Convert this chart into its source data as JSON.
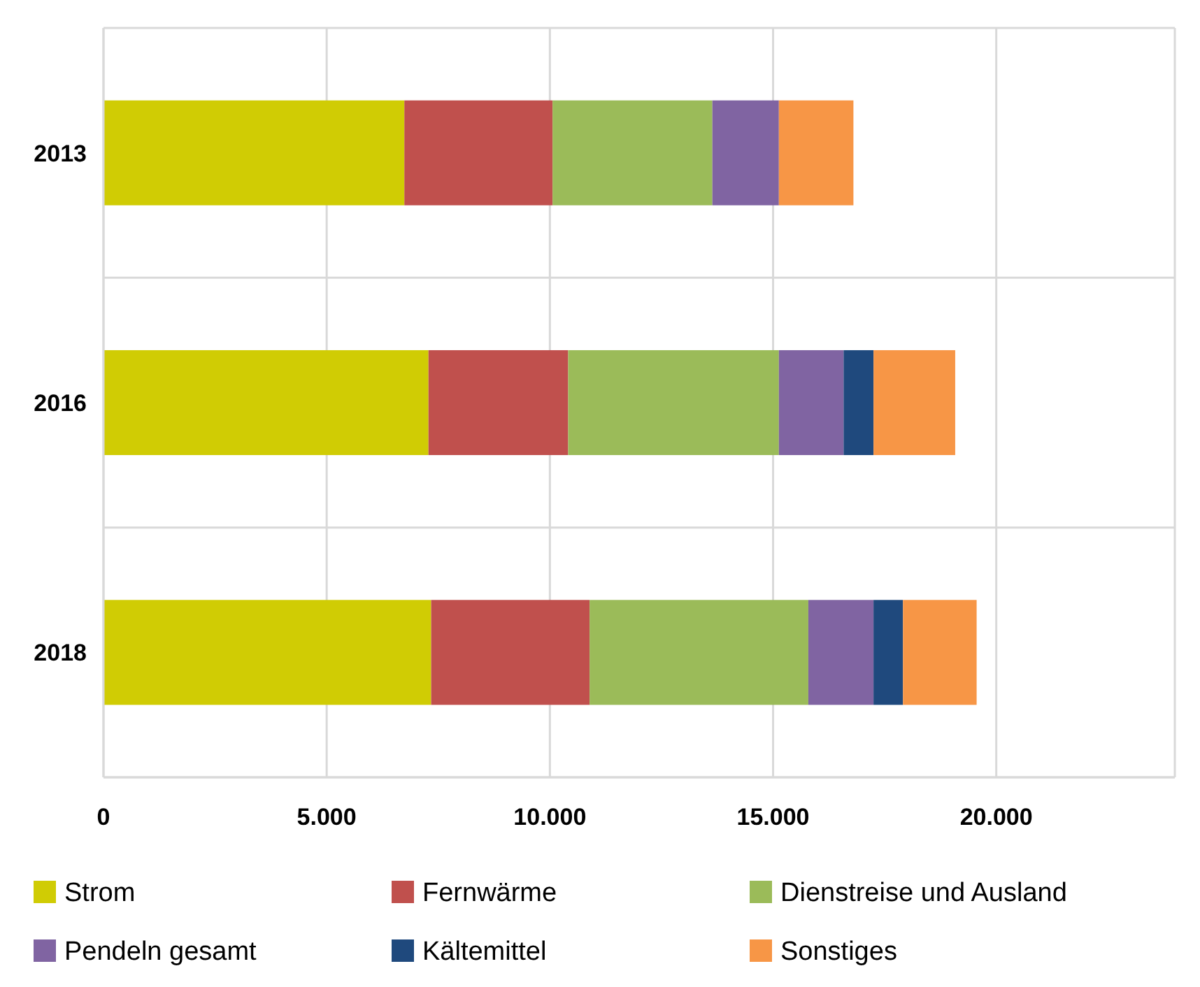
{
  "chart_data": {
    "type": "bar",
    "orientation": "horizontal",
    "stacked": true,
    "categories": [
      "2013",
      "2016",
      "2018"
    ],
    "series": [
      {
        "name": "Strom",
        "color": "#d0cc04",
        "values": [
          6740,
          7280,
          7340
        ]
      },
      {
        "name": "Fernwärme",
        "color": "#c0504d",
        "values": [
          3320,
          3130,
          3550
        ]
      },
      {
        "name": "Dienstreise und Ausland",
        "color": "#9bbb59",
        "values": [
          3580,
          4720,
          4900
        ]
      },
      {
        "name": "Pendeln gesamt",
        "color": "#8064a2",
        "values": [
          1490,
          1450,
          1460
        ]
      },
      {
        "name": "Kältemittel",
        "color": "#1f497d",
        "values": [
          null,
          670,
          660
        ]
      },
      {
        "name": "Sonstiges",
        "color": "#f79646",
        "values": [
          1670,
          1830,
          1650
        ]
      }
    ],
    "xlim": [
      0,
      24000
    ],
    "xticks": [
      {
        "value": 0,
        "label": "0"
      },
      {
        "value": 5000,
        "label": "5.000"
      },
      {
        "value": 10000,
        "label": "10.000"
      },
      {
        "value": 15000,
        "label": "15.000"
      },
      {
        "value": 20000,
        "label": "20.000"
      }
    ],
    "grid": true,
    "legend": "bottom"
  }
}
